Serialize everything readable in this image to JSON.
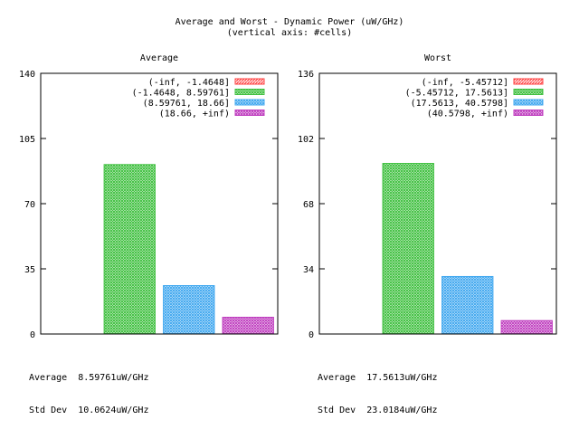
{
  "figure": {
    "title": "Average and Worst - Dynamic Power (uW/GHz)",
    "subtitle": "(vertical axis: #cells)"
  },
  "chart_data": [
    {
      "type": "bar",
      "title": "Average",
      "ylim": [
        0,
        140
      ],
      "yticks": [
        "0",
        "35",
        "70",
        "105",
        "140"
      ],
      "xlabel": "",
      "ylabel": "",
      "legend": "top-right",
      "categories": [
        "(-inf, -1.4648]",
        "(-1.4648, 8.59761]",
        "(8.59761, 18.66]",
        "(18.66, +inf)"
      ],
      "values": [
        0,
        91,
        26,
        9
      ],
      "colors": [
        "#ff4040",
        "#40c040",
        "#40a8f0",
        "#c040c0"
      ],
      "stats": [
        {
          "label": "Average",
          "value": "8.59761uW/GHz"
        },
        {
          "label": "Std Dev",
          "value": "10.0624uW/GHz"
        }
      ]
    },
    {
      "type": "bar",
      "title": "Worst",
      "ylim": [
        0,
        136
      ],
      "yticks": [
        "0",
        "34",
        "68",
        "102",
        "136"
      ],
      "xlabel": "",
      "ylabel": "",
      "legend": "top-right",
      "categories": [
        "(-inf, -5.45712]",
        "(-5.45712, 17.5613]",
        "(17.5613, 40.5798]",
        "(40.5798, +inf)"
      ],
      "values": [
        0,
        89,
        30,
        7
      ],
      "colors": [
        "#ff4040",
        "#40c040",
        "#40a8f0",
        "#c040c0"
      ],
      "stats": [
        {
          "label": "Average",
          "value": "17.5613uW/GHz"
        },
        {
          "label": "Std Dev",
          "value": "23.0184uW/GHz"
        }
      ]
    }
  ]
}
